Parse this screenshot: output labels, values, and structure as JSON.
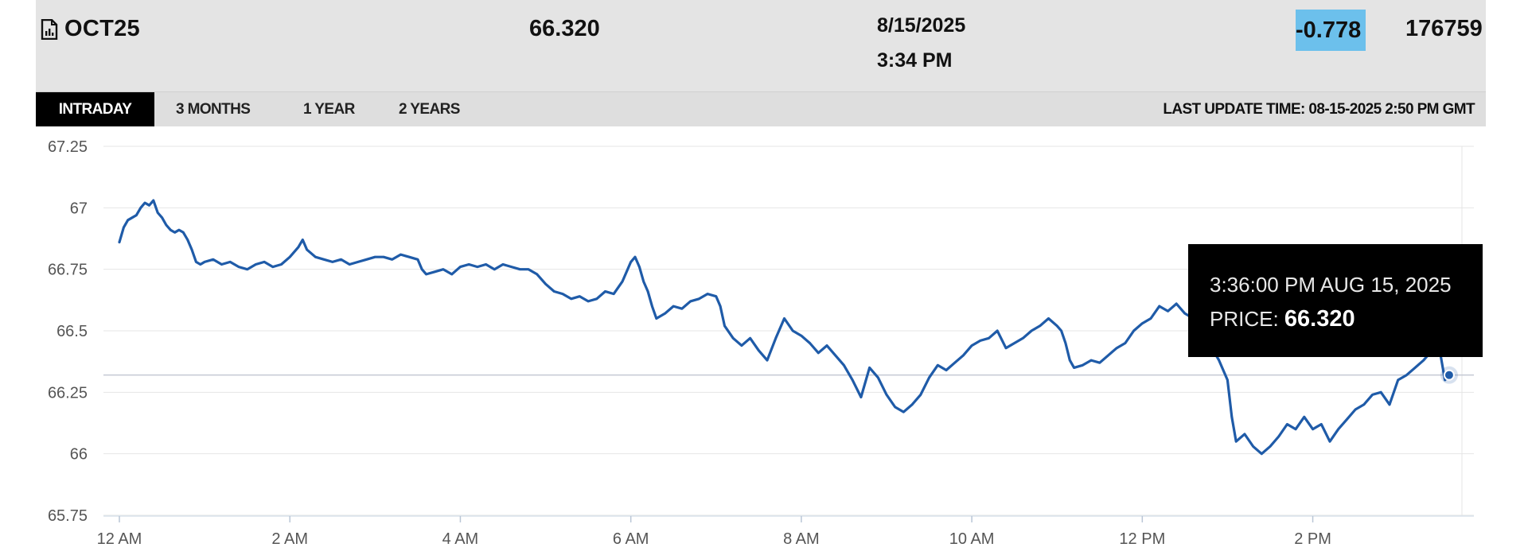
{
  "quote": {
    "symbol": "OCT25",
    "last": "66.320",
    "date": "8/15/2025",
    "time": "3:34 PM",
    "change": "-0.778",
    "volume": "176759",
    "change_highlight_color": "#6cc0ec"
  },
  "tabs": [
    {
      "label": "INTRADAY",
      "active": true
    },
    {
      "label": "3 MONTHS",
      "active": false
    },
    {
      "label": "1 YEAR",
      "active": false
    },
    {
      "label": "2 YEARS",
      "active": false
    }
  ],
  "last_update": "LAST UPDATE TIME: 08-15-2025 2:50 PM GMT",
  "tooltip": {
    "time": "3:36:00 PM AUG 15, 2025",
    "price_label": "PRICE:",
    "price_value": "66.320"
  },
  "chart_data": {
    "type": "line",
    "title": "",
    "xlabel": "",
    "ylabel": "",
    "line_color": "#1f5ba8",
    "grid": true,
    "ylim": [
      65.75,
      67.25
    ],
    "yticks": [
      "67.25",
      "67",
      "66.75",
      "66.5",
      "66.25",
      "66",
      "65.75"
    ],
    "xlim": [
      0,
      15.75
    ],
    "xticks": [
      {
        "label": "12 AM",
        "hour": 0
      },
      {
        "label": "2 AM",
        "hour": 2
      },
      {
        "label": "4 AM",
        "hour": 4
      },
      {
        "label": "6 AM",
        "hour": 6
      },
      {
        "label": "8 AM",
        "hour": 8
      },
      {
        "label": "10 AM",
        "hour": 10
      },
      {
        "label": "12 PM",
        "hour": 12
      },
      {
        "label": "2 PM",
        "hour": 14
      }
    ],
    "reference_price": 66.32,
    "series": [
      {
        "x_unit": "hours after 12 AM",
        "points": [
          [
            0.0,
            66.86
          ],
          [
            0.05,
            66.92
          ],
          [
            0.1,
            66.95
          ],
          [
            0.15,
            66.96
          ],
          [
            0.2,
            66.97
          ],
          [
            0.25,
            67.0
          ],
          [
            0.3,
            67.02
          ],
          [
            0.35,
            67.01
          ],
          [
            0.4,
            67.03
          ],
          [
            0.45,
            66.98
          ],
          [
            0.5,
            66.96
          ],
          [
            0.55,
            66.93
          ],
          [
            0.6,
            66.91
          ],
          [
            0.65,
            66.9
          ],
          [
            0.7,
            66.91
          ],
          [
            0.75,
            66.9
          ],
          [
            0.8,
            66.87
          ],
          [
            0.85,
            66.83
          ],
          [
            0.9,
            66.78
          ],
          [
            0.95,
            66.77
          ],
          [
            1.0,
            66.78
          ],
          [
            1.1,
            66.79
          ],
          [
            1.2,
            66.77
          ],
          [
            1.3,
            66.78
          ],
          [
            1.4,
            66.76
          ],
          [
            1.5,
            66.75
          ],
          [
            1.6,
            66.77
          ],
          [
            1.7,
            66.78
          ],
          [
            1.8,
            66.76
          ],
          [
            1.9,
            66.77
          ],
          [
            2.0,
            66.8
          ],
          [
            2.1,
            66.84
          ],
          [
            2.15,
            66.87
          ],
          [
            2.2,
            66.83
          ],
          [
            2.3,
            66.8
          ],
          [
            2.4,
            66.79
          ],
          [
            2.5,
            66.78
          ],
          [
            2.6,
            66.79
          ],
          [
            2.7,
            66.77
          ],
          [
            2.8,
            66.78
          ],
          [
            2.9,
            66.79
          ],
          [
            3.0,
            66.8
          ],
          [
            3.1,
            66.8
          ],
          [
            3.2,
            66.79
          ],
          [
            3.3,
            66.81
          ],
          [
            3.4,
            66.8
          ],
          [
            3.5,
            66.79
          ],
          [
            3.55,
            66.75
          ],
          [
            3.6,
            66.73
          ],
          [
            3.7,
            66.74
          ],
          [
            3.8,
            66.75
          ],
          [
            3.9,
            66.73
          ],
          [
            4.0,
            66.76
          ],
          [
            4.1,
            66.77
          ],
          [
            4.2,
            66.76
          ],
          [
            4.3,
            66.77
          ],
          [
            4.4,
            66.75
          ],
          [
            4.5,
            66.77
          ],
          [
            4.6,
            66.76
          ],
          [
            4.7,
            66.75
          ],
          [
            4.8,
            66.75
          ],
          [
            4.9,
            66.73
          ],
          [
            5.0,
            66.69
          ],
          [
            5.1,
            66.66
          ],
          [
            5.2,
            66.65
          ],
          [
            5.3,
            66.63
          ],
          [
            5.4,
            66.64
          ],
          [
            5.5,
            66.62
          ],
          [
            5.6,
            66.63
          ],
          [
            5.7,
            66.66
          ],
          [
            5.8,
            66.65
          ],
          [
            5.9,
            66.7
          ],
          [
            6.0,
            66.78
          ],
          [
            6.05,
            66.8
          ],
          [
            6.1,
            66.76
          ],
          [
            6.15,
            66.7
          ],
          [
            6.2,
            66.66
          ],
          [
            6.25,
            66.6
          ],
          [
            6.3,
            66.55
          ],
          [
            6.4,
            66.57
          ],
          [
            6.5,
            66.6
          ],
          [
            6.6,
            66.59
          ],
          [
            6.7,
            66.62
          ],
          [
            6.8,
            66.63
          ],
          [
            6.9,
            66.65
          ],
          [
            7.0,
            66.64
          ],
          [
            7.05,
            66.6
          ],
          [
            7.1,
            66.52
          ],
          [
            7.2,
            66.47
          ],
          [
            7.3,
            66.44
          ],
          [
            7.4,
            66.47
          ],
          [
            7.5,
            66.42
          ],
          [
            7.6,
            66.38
          ],
          [
            7.7,
            66.47
          ],
          [
            7.8,
            66.55
          ],
          [
            7.9,
            66.5
          ],
          [
            8.0,
            66.48
          ],
          [
            8.1,
            66.45
          ],
          [
            8.2,
            66.41
          ],
          [
            8.3,
            66.44
          ],
          [
            8.4,
            66.4
          ],
          [
            8.5,
            66.36
          ],
          [
            8.6,
            66.3
          ],
          [
            8.7,
            66.23
          ],
          [
            8.8,
            66.35
          ],
          [
            8.9,
            66.31
          ],
          [
            9.0,
            66.24
          ],
          [
            9.1,
            66.19
          ],
          [
            9.2,
            66.17
          ],
          [
            9.3,
            66.2
          ],
          [
            9.4,
            66.24
          ],
          [
            9.5,
            66.31
          ],
          [
            9.6,
            66.36
          ],
          [
            9.7,
            66.34
          ],
          [
            9.8,
            66.37
          ],
          [
            9.9,
            66.4
          ],
          [
            10.0,
            66.44
          ],
          [
            10.1,
            66.46
          ],
          [
            10.2,
            66.47
          ],
          [
            10.3,
            66.5
          ],
          [
            10.4,
            66.43
          ],
          [
            10.5,
            66.45
          ],
          [
            10.6,
            66.47
          ],
          [
            10.7,
            66.5
          ],
          [
            10.8,
            66.52
          ],
          [
            10.9,
            66.55
          ],
          [
            11.0,
            66.52
          ],
          [
            11.05,
            66.5
          ],
          [
            11.1,
            66.45
          ],
          [
            11.15,
            66.38
          ],
          [
            11.2,
            66.35
          ],
          [
            11.3,
            66.36
          ],
          [
            11.4,
            66.38
          ],
          [
            11.5,
            66.37
          ],
          [
            11.6,
            66.4
          ],
          [
            11.7,
            66.43
          ],
          [
            11.8,
            66.45
          ],
          [
            11.9,
            66.5
          ],
          [
            12.0,
            66.53
          ],
          [
            12.1,
            66.55
          ],
          [
            12.2,
            66.6
          ],
          [
            12.3,
            66.58
          ],
          [
            12.4,
            66.61
          ],
          [
            12.5,
            66.57
          ],
          [
            12.6,
            66.55
          ],
          [
            12.7,
            66.5
          ],
          [
            12.8,
            66.44
          ],
          [
            12.9,
            66.38
          ],
          [
            13.0,
            66.3
          ],
          [
            13.05,
            66.15
          ],
          [
            13.1,
            66.05
          ],
          [
            13.2,
            66.08
          ],
          [
            13.3,
            66.03
          ],
          [
            13.4,
            66.0
          ],
          [
            13.5,
            66.03
          ],
          [
            13.6,
            66.07
          ],
          [
            13.7,
            66.12
          ],
          [
            13.8,
            66.1
          ],
          [
            13.9,
            66.15
          ],
          [
            14.0,
            66.1
          ],
          [
            14.1,
            66.12
          ],
          [
            14.2,
            66.05
          ],
          [
            14.3,
            66.1
          ],
          [
            14.4,
            66.14
          ],
          [
            14.5,
            66.18
          ],
          [
            14.6,
            66.2
          ],
          [
            14.7,
            66.24
          ],
          [
            14.8,
            66.25
          ],
          [
            14.9,
            66.2
          ],
          [
            15.0,
            66.3
          ],
          [
            15.1,
            66.32
          ],
          [
            15.2,
            66.35
          ],
          [
            15.3,
            66.38
          ],
          [
            15.4,
            66.42
          ],
          [
            15.5,
            66.4
          ],
          [
            15.55,
            66.3
          ],
          [
            15.6,
            66.32
          ]
        ]
      }
    ]
  }
}
